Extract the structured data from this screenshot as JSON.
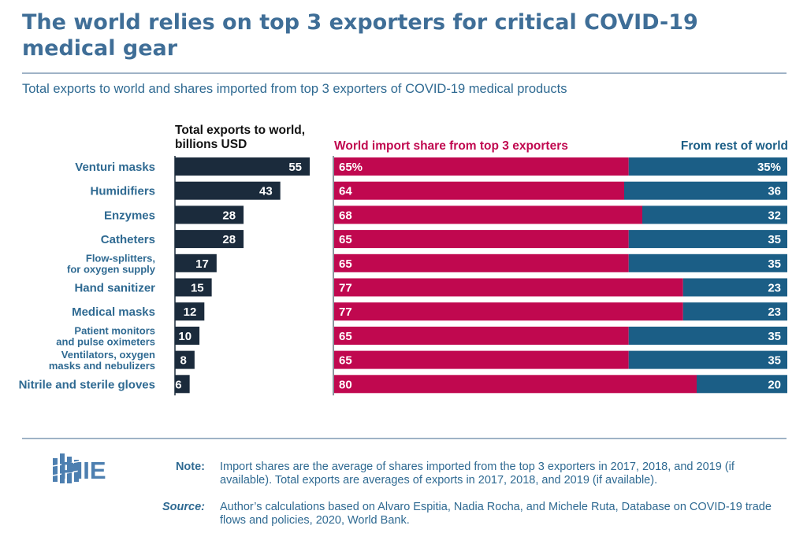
{
  "title": "The world relies on top 3 exporters for critical COVID-19 medical gear",
  "subtitle": "Total exports to world and shares imported from top 3 exporters of COVID-19 medical products",
  "headers": {
    "exports_line1": "Total exports to world,",
    "exports_line2": "billions USD",
    "top3": "World import share from top 3 exporters",
    "rest": "From rest of world"
  },
  "colors": {
    "title": "#3f6e97",
    "dark_bar": "#1b2b3c",
    "top3": "#c0084f",
    "rest": "#1b5e86",
    "label": "#2f6a92"
  },
  "chart_data": {
    "type": "bar",
    "categories": [
      [
        "Venturi masks"
      ],
      [
        "Humidifiers"
      ],
      [
        "Enzymes"
      ],
      [
        "Catheters"
      ],
      [
        "Flow-splitters,",
        "for oxygen supply"
      ],
      [
        "Hand sanitizer"
      ],
      [
        "Medical masks"
      ],
      [
        "Patient monitors",
        "and pulse oximeters"
      ],
      [
        "Ventilators, oxygen",
        "masks and nebulizers"
      ],
      [
        "Nitrile and sterile gloves"
      ]
    ],
    "series": [
      {
        "name": "Total exports to world, billions USD",
        "values": [
          55,
          43,
          28,
          28,
          17,
          15,
          12,
          10,
          8,
          6
        ]
      },
      {
        "name": "World import share from top 3 exporters",
        "values": [
          65,
          64,
          68,
          65,
          65,
          77,
          77,
          65,
          65,
          80
        ]
      },
      {
        "name": "From rest of world",
        "values": [
          35,
          36,
          32,
          35,
          35,
          23,
          23,
          35,
          35,
          20
        ]
      }
    ],
    "exports_labels": [
      "55",
      "43",
      "28",
      "28",
      "17",
      "15",
      "12",
      "10",
      "8",
      "6"
    ],
    "top3_labels": [
      "65%",
      "64",
      "68",
      "65",
      "65",
      "77",
      "77",
      "65",
      "65",
      "80"
    ],
    "rest_labels": [
      "35%",
      "36",
      "32",
      "35",
      "35",
      "23",
      "23",
      "35",
      "35",
      "20"
    ],
    "exports_max": 55,
    "share_total": 100
  },
  "logo": {
    "text": "PIIE"
  },
  "footnotes": {
    "note_label": "Note:",
    "note_text": "Import shares are the average of shares imported from the top 3 exporters in 2017, 2018, and 2019 (if available). Total exports are averages of exports in 2017, 2018, and 2019 (if available).",
    "source_label": "Source:",
    "source_text": "Author’s calculations based on Alvaro Espitia, Nadia Rocha, and Michele Ruta, Database on COVID-19 trade flows and policies, 2020, World Bank."
  }
}
